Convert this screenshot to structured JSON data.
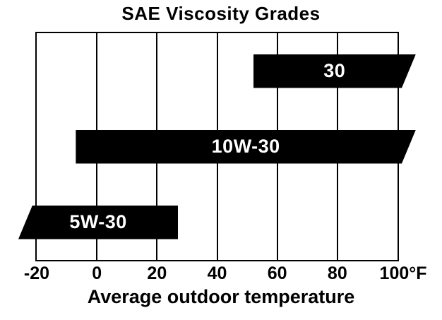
{
  "chart_data": {
    "type": "bar",
    "orientation": "horizontal",
    "title": "SAE Viscosity Grades",
    "xlabel": "Average outdoor temperature",
    "xlim": [
      -20,
      100
    ],
    "xticks": [
      -20,
      0,
      20,
      40,
      60,
      80,
      100
    ],
    "xtick_labels": [
      "-20",
      "0",
      "20",
      "40",
      "60",
      "80",
      "100°F"
    ],
    "grid": "vertical-only",
    "legend": "none",
    "series": [
      {
        "name": "30",
        "start": 52,
        "end": 100,
        "open_left": false,
        "open_right": true,
        "note": "range continues above 100°F"
      },
      {
        "name": "10W-30",
        "start": -7,
        "end": 100,
        "open_left": false,
        "open_right": true,
        "note": "range continues above 100°F"
      },
      {
        "name": "5W-30",
        "start": -20,
        "end": 27,
        "open_left": true,
        "open_right": false,
        "note": "range continues below -20°F"
      }
    ],
    "colors": {
      "bar": "#000000",
      "bar_label": "#ffffff",
      "axis": "#000000",
      "background": "#ffffff"
    }
  }
}
